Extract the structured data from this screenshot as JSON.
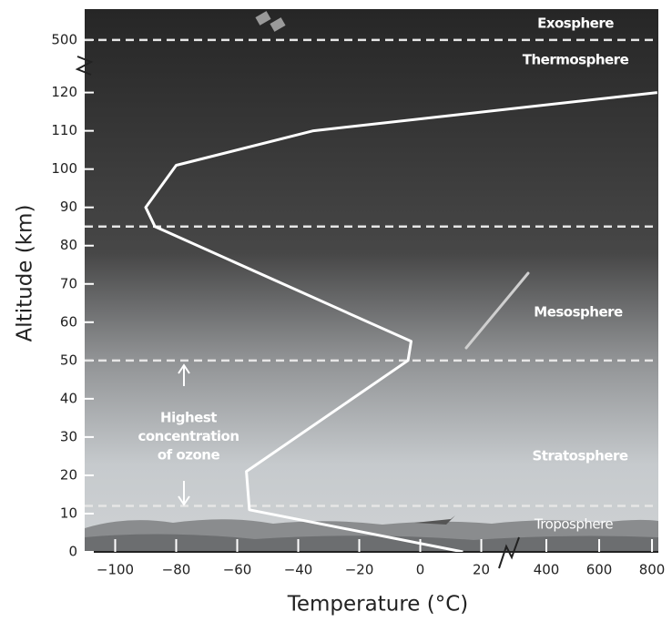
{
  "chart_data": {
    "type": "line",
    "x_label": "Temperature (°C)",
    "y_label": "Altitude (km)",
    "xlim": [
      [
        -110,
        27
      ],
      [
        262,
        824
      ]
    ],
    "ylim": [
      [
        0,
        123
      ],
      [
        480,
        524
      ]
    ],
    "xticks": [
      {
        "value": -100,
        "label": "−100"
      },
      {
        "value": -80,
        "label": "−80"
      },
      {
        "value": -60,
        "label": "−60"
      },
      {
        "value": -40,
        "label": "−40"
      },
      {
        "value": -20,
        "label": "−20"
      },
      0,
      20,
      400,
      600,
      800
    ],
    "yticks": [
      0,
      10,
      20,
      30,
      40,
      50,
      60,
      70,
      80,
      90,
      100,
      110,
      120,
      500
    ],
    "series": [
      {
        "color": "#ffffff",
        "x": [
          14,
          -56,
          -57,
          -4,
          -3,
          -87,
          -90,
          -80,
          -35,
          820
        ],
        "values": [
          0,
          11,
          21,
          50,
          55,
          85,
          90,
          101,
          110,
          120
        ]
      }
    ],
    "boundaries": [
      12,
      50,
      85,
      500
    ],
    "layers": [
      "Exosphere",
      "Thermosphere",
      "Mesosphere",
      "Stratosphere",
      "Troposphere"
    ],
    "annotation": [
      "Highest",
      "concentration",
      "of ozone"
    ]
  }
}
